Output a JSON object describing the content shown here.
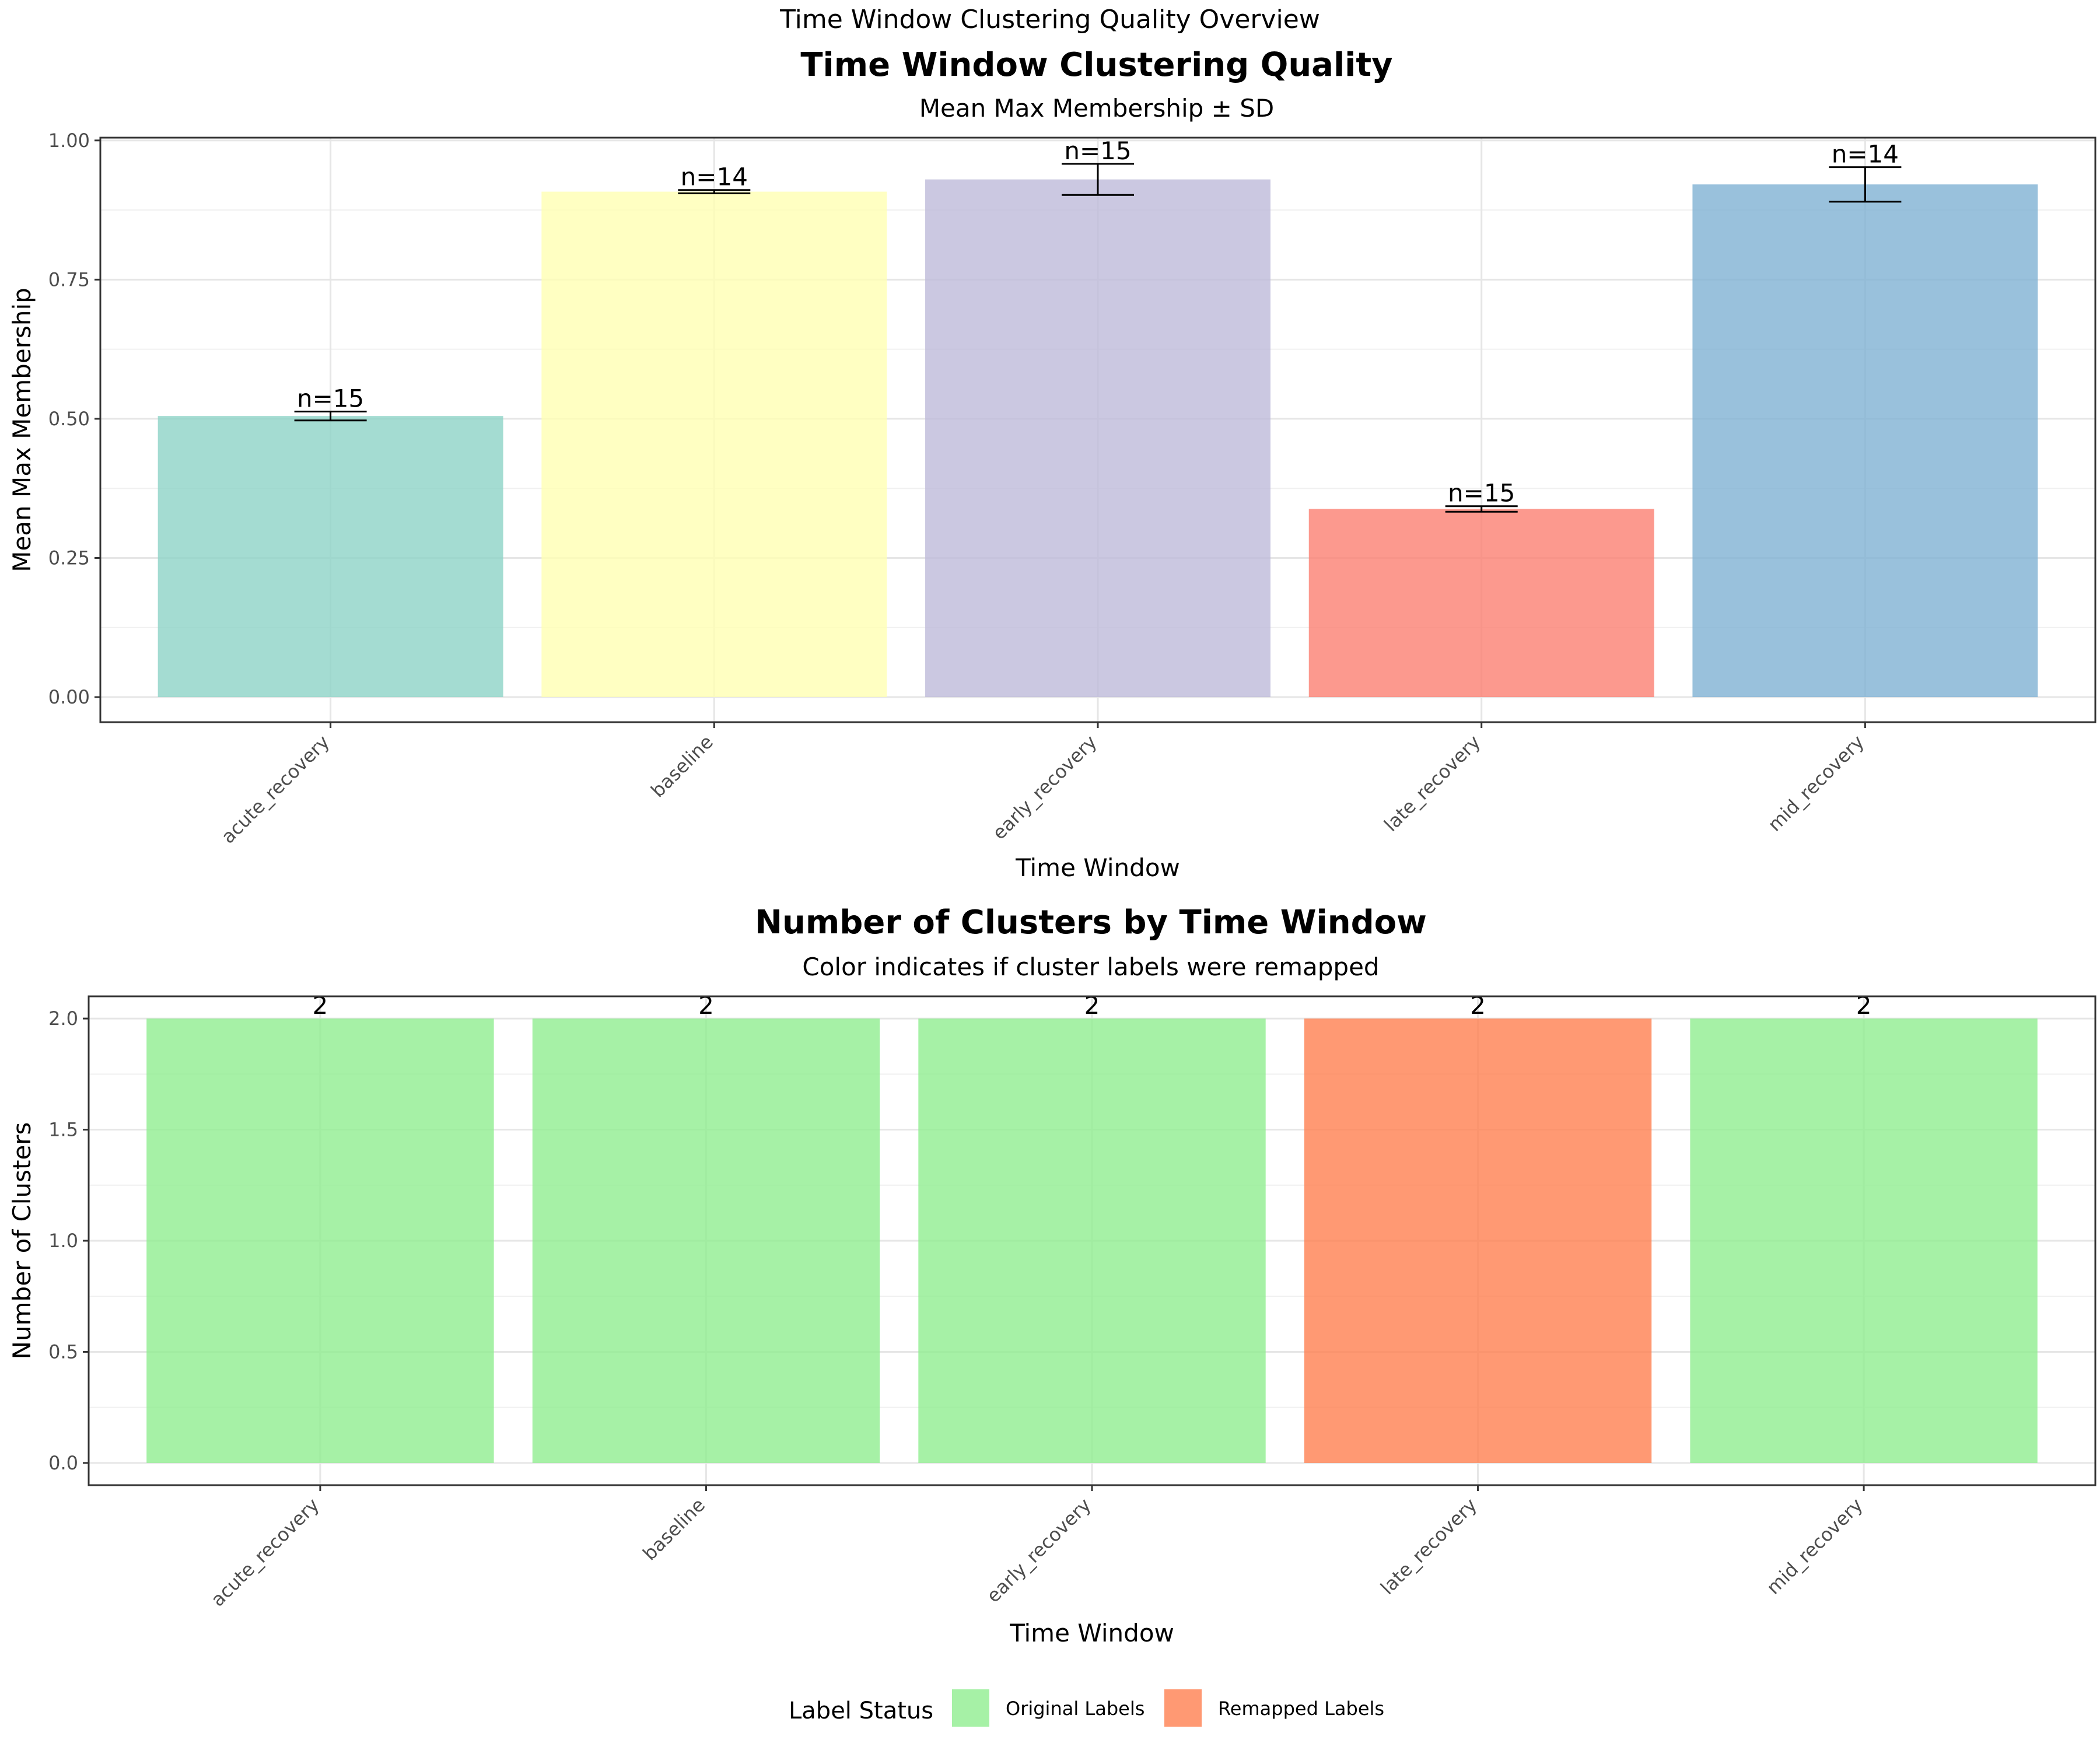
{
  "page_title": "Time Window Clustering Quality Overview",
  "chart_data": [
    {
      "type": "bar",
      "title": "Time Window Clustering Quality",
      "subtitle": "Mean Max Membership ± SD",
      "xlabel": "Time Window",
      "ylabel": "Mean Max Membership",
      "ylim": [
        -0.045,
        1.005
      ],
      "yticks": [
        0.0,
        0.25,
        0.5,
        0.75,
        1.0
      ],
      "ytick_labels": [
        "0.00",
        "0.25",
        "0.50",
        "0.75",
        "1.00"
      ],
      "grid": true,
      "categories": [
        "acute_recovery",
        "baseline",
        "early_recovery",
        "late_recovery",
        "mid_recovery"
      ],
      "values": [
        0.505,
        0.908,
        0.93,
        0.338,
        0.921
      ],
      "sd": [
        0.008,
        0.003,
        0.028,
        0.005,
        0.031
      ],
      "labels": [
        "n=15",
        "n=14",
        "n=15",
        "n=15",
        "n=14"
      ],
      "colors": [
        "#8dd3c7",
        "#ffffb3",
        "#bebada",
        "#fb8072",
        "#80b1d3"
      ]
    },
    {
      "type": "bar",
      "title": "Number of Clusters by Time Window",
      "subtitle": "Color indicates if cluster labels were remapped",
      "xlabel": "Time Window",
      "ylabel": "Number of Clusters",
      "ylim": [
        -0.1,
        2.1
      ],
      "yticks": [
        0.0,
        0.5,
        1.0,
        1.5,
        2.0
      ],
      "ytick_labels": [
        "0.0",
        "0.5",
        "1.0",
        "1.5",
        "2.0"
      ],
      "grid": true,
      "categories": [
        "acute_recovery",
        "baseline",
        "early_recovery",
        "late_recovery",
        "mid_recovery"
      ],
      "values": [
        2,
        2,
        2,
        2,
        2
      ],
      "labels": [
        "2",
        "2",
        "2",
        "2",
        "2"
      ],
      "status": [
        "Original Labels",
        "Original Labels",
        "Original Labels",
        "Remapped Labels",
        "Original Labels"
      ],
      "legend": {
        "title": "Label Status",
        "position": "bottom",
        "entries": [
          {
            "name": "Original Labels",
            "color": "#90ee90"
          },
          {
            "name": "Remapped Labels",
            "color": "#ff7f50"
          }
        ]
      }
    }
  ]
}
